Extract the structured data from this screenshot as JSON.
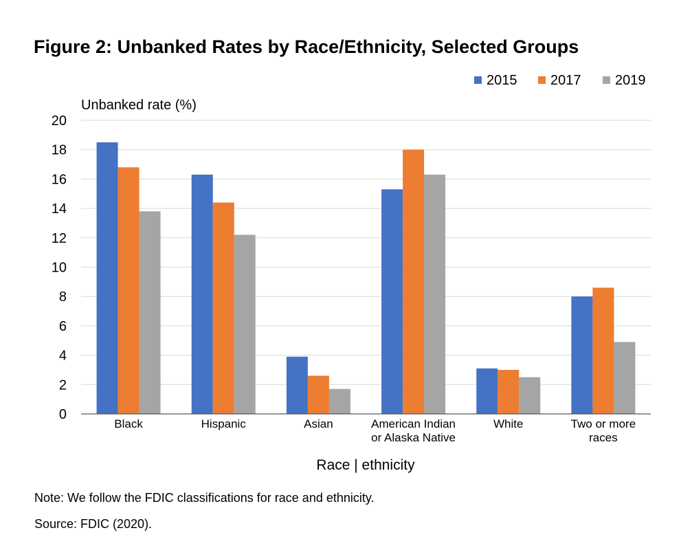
{
  "chart_data": {
    "type": "bar",
    "title": "Figure 2: Unbanked Rates by Race/Ethnicity, Selected Groups",
    "ylabel": "Unbanked rate (%)",
    "xlabel": "Race | ethnicity",
    "ylim": [
      0,
      20
    ],
    "yticks": [
      0,
      2,
      4,
      6,
      8,
      10,
      12,
      14,
      16,
      18,
      20
    ],
    "grid": true,
    "legend_position": "top-right",
    "categories": [
      [
        "Black"
      ],
      [
        "Hispanic"
      ],
      [
        "Asian"
      ],
      [
        "American Indian",
        "or Alaska Native"
      ],
      [
        "White"
      ],
      [
        "Two or more",
        "races"
      ]
    ],
    "series": [
      {
        "name": "2015",
        "color": "#4472C4",
        "values": [
          18.5,
          16.3,
          3.9,
          15.3,
          3.1,
          8.0
        ]
      },
      {
        "name": "2017",
        "color": "#ED7D31",
        "values": [
          16.8,
          14.4,
          2.6,
          18.0,
          3.0,
          8.6
        ]
      },
      {
        "name": "2019",
        "color": "#A5A5A5",
        "values": [
          13.8,
          12.2,
          1.7,
          16.3,
          2.5,
          4.9
        ]
      }
    ]
  },
  "notes": {
    "note": "Note: We follow the FDIC classifications for race and ethnicity.",
    "source": "Source: FDIC (2020)."
  }
}
